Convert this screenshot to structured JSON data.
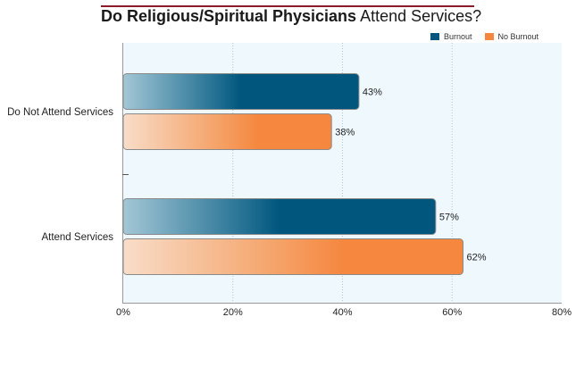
{
  "title": {
    "bold": "Do Religious/Spiritual Physicians",
    "normal": "Attend Services?"
  },
  "legend": [
    {
      "label": "Burnout",
      "color": "#00567d"
    },
    {
      "label": "No Burnout",
      "color": "#f5873f"
    }
  ],
  "chart_data": {
    "type": "bar",
    "orientation": "horizontal",
    "title": "Do Religious/Spiritual Physicians Attend Services?",
    "categories": [
      "Do Not Attend Services",
      "Attend Services"
    ],
    "series": [
      {
        "name": "Burnout",
        "values": [
          43,
          57
        ],
        "color": "#00567d"
      },
      {
        "name": "No Burnout",
        "values": [
          38,
          62
        ],
        "color": "#f5873f"
      }
    ],
    "value_labels": [
      [
        "43%",
        "38%"
      ],
      [
        "57%",
        "62%"
      ]
    ],
    "xlim": [
      0,
      80
    ],
    "x_ticks": [
      "0%",
      "20%",
      "40%",
      "60%",
      "80%"
    ],
    "grid": true,
    "legend_position": "top-right"
  }
}
